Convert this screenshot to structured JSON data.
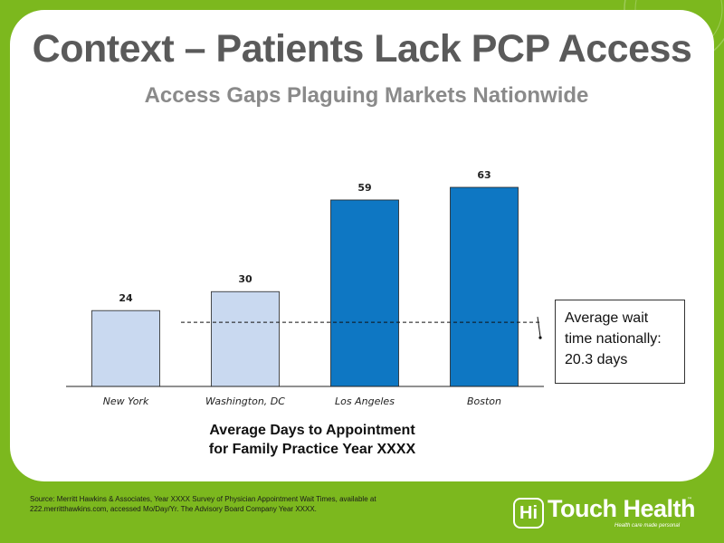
{
  "slide": {
    "title": "Context – Patients Lack PCP Access",
    "subtitle": "Access Gaps Plaguing Markets Nationwide"
  },
  "chart_data": {
    "type": "bar",
    "categories": [
      "New York",
      "Washington, DC",
      "Los Angeles",
      "Boston"
    ],
    "values": [
      24,
      30,
      59,
      63
    ],
    "ylim": [
      0,
      63
    ],
    "caption_lines": [
      "Average Days to Appointment",
      "for Family Practice Year XXXX"
    ],
    "reference_value": 20.3,
    "grid": false
  },
  "colors": {
    "background": "#7cb81e",
    "bar_light": "#c9d9f0",
    "bar_dark": "#0e77c3"
  },
  "callout": {
    "lines": [
      "Average wait",
      "time nationally:",
      "20.3 days"
    ]
  },
  "source": {
    "text": "Source:  Merritt Hawkins & Associates, Year XXXX Survey of Physician Appointment Wait Times, available at 222.merritthawkins.com, accessed Mo/Day/Yr.  The Advisory Board Company Year XXXX."
  },
  "logo": {
    "badge": "Hi",
    "name": "Touch Health",
    "tm": "™",
    "tagline": "Health care made personal"
  }
}
